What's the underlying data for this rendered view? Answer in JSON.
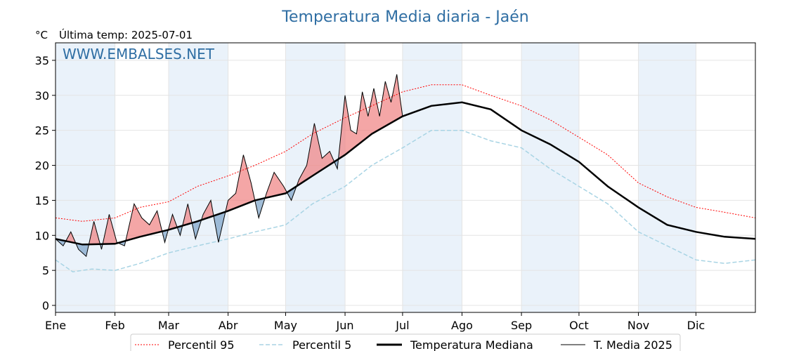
{
  "title": "Temperatura Media diaria - Jaén",
  "unit_label": "°C",
  "last_temp_label": "Última temp: 2025-07-01",
  "watermark": "WWW.EMBALSES.NET",
  "legend": {
    "p95": "Percentil 95",
    "p5": "Percentil 5",
    "median": "Temperatura Mediana",
    "current": "T. Media 2025"
  },
  "colors": {
    "p95": "#ff0000",
    "p5": "#a8d4e4",
    "median": "#000000",
    "current": "#000000",
    "above_fill": "#f08080",
    "below_fill": "#7aa2c8",
    "title": "#2f6ea3",
    "month_band": "#eaf2fa"
  },
  "chart_data": {
    "type": "line",
    "title": "Temperatura Media diaria - Jaén",
    "ylabel": "°C",
    "ylim": [
      -1,
      37.5
    ],
    "yticks": [
      0,
      5,
      10,
      15,
      20,
      25,
      30,
      35
    ],
    "xlim": [
      1,
      366
    ],
    "grid": true,
    "legend_position": "bottom",
    "months": [
      {
        "label": "Ene",
        "day": 1
      },
      {
        "label": "Feb",
        "day": 32
      },
      {
        "label": "Mar",
        "day": 60
      },
      {
        "label": "Abr",
        "day": 91
      },
      {
        "label": "May",
        "day": 121
      },
      {
        "label": "Jun",
        "day": 152
      },
      {
        "label": "Jul",
        "day": 182
      },
      {
        "label": "Ago",
        "day": 213
      },
      {
        "label": "Sep",
        "day": 244
      },
      {
        "label": "Oct",
        "day": 274
      },
      {
        "label": "Nov",
        "day": 305
      },
      {
        "label": "Dic",
        "day": 335
      }
    ],
    "series": [
      {
        "name": "Percentil 95",
        "x": [
          1,
          15,
          32,
          45,
          60,
          75,
          91,
          105,
          121,
          135,
          152,
          166,
          182,
          197,
          213,
          228,
          244,
          259,
          274,
          289,
          305,
          320,
          335,
          350,
          366
        ],
        "y": [
          12.5,
          12.0,
          12.5,
          14.0,
          14.8,
          17.0,
          18.5,
          20.0,
          22.0,
          24.5,
          26.8,
          28.5,
          30.5,
          31.5,
          31.5,
          30.0,
          28.5,
          26.5,
          24.0,
          21.5,
          17.5,
          15.5,
          14.0,
          13.3,
          12.5
        ]
      },
      {
        "name": "Percentil 5",
        "x": [
          1,
          10,
          20,
          32,
          45,
          60,
          75,
          91,
          105,
          121,
          135,
          152,
          166,
          182,
          197,
          213,
          228,
          244,
          259,
          274,
          289,
          305,
          320,
          335,
          350,
          366
        ],
        "y": [
          6.5,
          4.8,
          5.2,
          5.0,
          6.0,
          7.5,
          8.5,
          9.5,
          10.5,
          11.5,
          14.5,
          17.0,
          20.0,
          22.5,
          25.0,
          25.0,
          23.5,
          22.5,
          19.5,
          17.0,
          14.5,
          10.5,
          8.5,
          6.5,
          6.0,
          6.5
        ]
      },
      {
        "name": "Temperatura Mediana",
        "x": [
          1,
          15,
          32,
          45,
          60,
          75,
          91,
          105,
          121,
          135,
          152,
          166,
          182,
          197,
          213,
          228,
          244,
          259,
          274,
          289,
          305,
          320,
          335,
          350,
          366
        ],
        "y": [
          9.5,
          8.7,
          8.8,
          9.8,
          10.8,
          12.0,
          13.5,
          15.0,
          16.0,
          18.5,
          21.5,
          24.5,
          27.0,
          28.5,
          29.0,
          28.0,
          25.0,
          23.0,
          20.5,
          17.0,
          14.0,
          11.5,
          10.5,
          9.8,
          9.5
        ]
      },
      {
        "name": "T. Media 2025",
        "x": [
          1,
          5,
          9,
          13,
          17,
          21,
          25,
          29,
          33,
          37,
          42,
          46,
          50,
          54,
          58,
          62,
          66,
          70,
          74,
          78,
          82,
          86,
          91,
          95,
          99,
          103,
          107,
          111,
          115,
          120,
          124,
          128,
          132,
          136,
          140,
          144,
          148,
          152,
          155,
          158,
          161,
          164,
          167,
          170,
          173,
          176,
          179,
          182
        ],
        "y": [
          9.5,
          8.5,
          10.5,
          8.0,
          7.0,
          12.0,
          8.0,
          13.0,
          9.0,
          8.5,
          14.5,
          12.5,
          11.5,
          13.5,
          9.0,
          13.0,
          10.0,
          14.5,
          9.5,
          13.0,
          15.0,
          9.0,
          15.0,
          16.0,
          21.5,
          17.5,
          12.5,
          16.0,
          19.0,
          17.0,
          15.0,
          18.0,
          20.0,
          26.0,
          21.0,
          22.0,
          19.5,
          30.0,
          25.0,
          24.5,
          30.5,
          27.0,
          31.0,
          27.0,
          32.0,
          29.0,
          33.0,
          27.0
        ]
      }
    ]
  }
}
